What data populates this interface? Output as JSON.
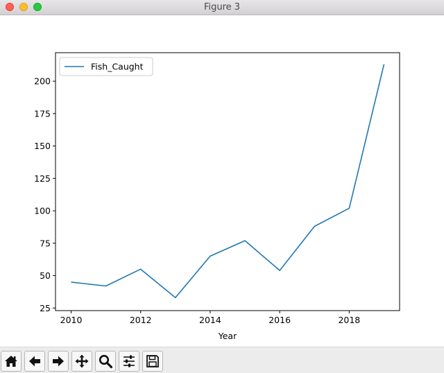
{
  "window": {
    "title": "Figure 3"
  },
  "chart_data": {
    "type": "line",
    "title": "",
    "xlabel": "Year",
    "ylabel": "",
    "x": [
      2010,
      2011,
      2012,
      2013,
      2014,
      2015,
      2016,
      2017,
      2018,
      2019
    ],
    "series": [
      {
        "name": "Fish_Caught",
        "color": "#1f77b4",
        "values": [
          45,
          42,
          55,
          33,
          65,
          77,
          54,
          88,
          102,
          213
        ]
      }
    ],
    "xlim": [
      2009.55,
      2019.45
    ],
    "ylim": [
      23,
      222
    ],
    "xticks": [
      2010,
      2012,
      2014,
      2016,
      2018
    ],
    "yticks": [
      25,
      50,
      75,
      100,
      125,
      150,
      175,
      200
    ],
    "grid": false,
    "legend_position": "top-left"
  },
  "toolbar": {
    "buttons": [
      {
        "icon": "home-icon"
      },
      {
        "icon": "back-arrow-icon"
      },
      {
        "icon": "forward-arrow-icon"
      },
      {
        "icon": "pan-move-icon"
      },
      {
        "icon": "zoom-magnifier-icon"
      },
      {
        "icon": "configure-subplots-icon"
      },
      {
        "icon": "save-floppy-icon"
      }
    ]
  }
}
